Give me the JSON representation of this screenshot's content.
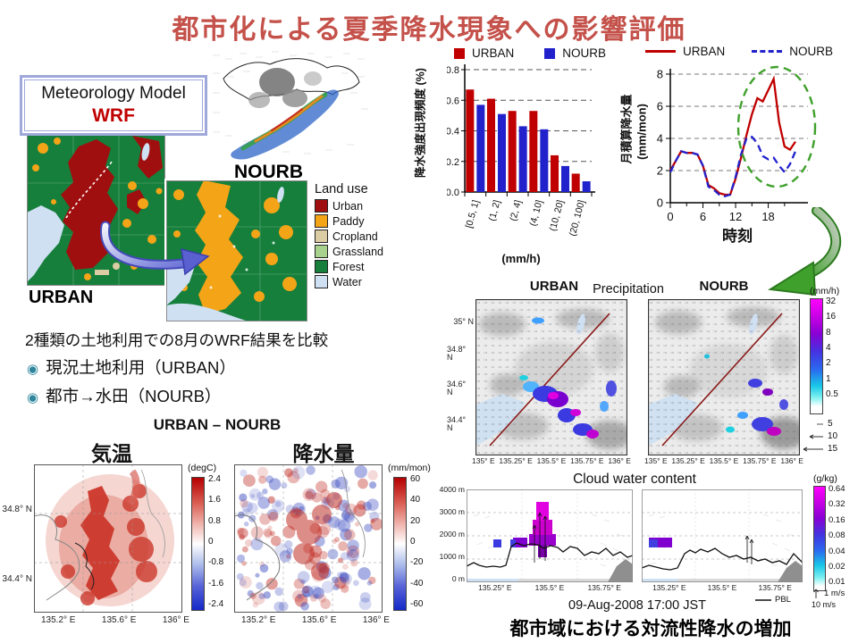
{
  "slide": {
    "title": "都市化による夏季降水現象への影響評価",
    "bottom_caption": "都市域における対流性降水の増加"
  },
  "model_box": {
    "line1": "Meteorology Model",
    "line2": "WRF"
  },
  "landuse": {
    "urban_label": "URBAN",
    "nourb_label": "NOURB",
    "legend_title": "Land use",
    "items": [
      {
        "label": "Urban",
        "color": "#A00F0F"
      },
      {
        "label": "Paddy",
        "color": "#F4A417"
      },
      {
        "label": "Cropland",
        "color": "#DCCCA4"
      },
      {
        "label": "Grassland",
        "color": "#A9D18E"
      },
      {
        "label": "Forest",
        "color": "#157F3B"
      },
      {
        "label": "Water",
        "color": "#CFE0F2"
      }
    ]
  },
  "comparison": {
    "heading": "2種類の土地利用での8月のWRF結果を比較",
    "bullet_glyph": "◉",
    "bullets": [
      "現況土地利用（URBAN）",
      "都市→水田（NOURB）"
    ],
    "diff_heading": "URBAN – NOURB"
  },
  "chart_data": [
    {
      "type": "bar",
      "name": "precipitation-intensity-frequency",
      "categories": [
        "[0.5, 1]",
        "(1, 2]",
        "(2, 4]",
        "(4, 10]",
        "(10, 20]",
        "(20, 100]"
      ],
      "series": [
        {
          "name": "URBAN",
          "color": "#C00000",
          "values": [
            0.67,
            0.61,
            0.53,
            0.53,
            0.24,
            0.12
          ]
        },
        {
          "name": "NOURB",
          "color": "#2222CC",
          "values": [
            0.57,
            0.51,
            0.43,
            0.41,
            0.17,
            0.07
          ]
        }
      ],
      "ylabel": "降水強度出現頻度 (%)",
      "xlabel": "(mm/h)",
      "ylim": [
        0,
        0.8
      ],
      "yticks": [
        "0.0",
        "0.2",
        "0.4",
        "0.6",
        "0.8"
      ],
      "grid": "dashed horizontal"
    },
    {
      "type": "line",
      "name": "diurnal-precipitation",
      "x": [
        0,
        1,
        2,
        3,
        4,
        5,
        6,
        7,
        8,
        9,
        10,
        11,
        12,
        13,
        14,
        15,
        16,
        17,
        18,
        19,
        20,
        21,
        22,
        23
      ],
      "series": [
        {
          "name": "URBAN",
          "color": "#C00000",
          "dash": "solid",
          "values": [
            2.0,
            2.6,
            3.2,
            3.1,
            3.1,
            3.0,
            2.3,
            1.1,
            0.9,
            0.6,
            0.5,
            0.5,
            1.5,
            2.8,
            4.2,
            5.5,
            6.5,
            6.3,
            7.0,
            7.7,
            5.0,
            3.5,
            3.3,
            3.8
          ]
        },
        {
          "name": "NOURB",
          "color": "#2222CC",
          "dash": "dashed",
          "values": [
            1.9,
            2.6,
            3.2,
            3.1,
            3.1,
            3.0,
            2.3,
            1.0,
            0.8,
            0.5,
            0.4,
            0.5,
            1.6,
            3.0,
            4.0,
            4.1,
            3.7,
            2.9,
            2.7,
            2.8,
            2.3,
            1.9,
            2.4,
            3.2
          ]
        }
      ],
      "ylabel": "月積算降水量 (mm/mon)",
      "ylabel_jp": "月積算降水量",
      "ylabel_unit": "(mm/mon)",
      "xlabel": "時刻",
      "ylim": [
        0,
        8
      ],
      "yticks": [
        "0",
        "2",
        "4",
        "6",
        "8"
      ],
      "xticks": [
        "0",
        "6",
        "12",
        "18"
      ],
      "annotation": "green dashed ellipse highlighting afternoon (14-23h) urban precipitation peak"
    },
    {
      "type": "heatmap",
      "name": "temperature-diff-map",
      "title": "気温",
      "colorbar_label": "(degC)",
      "colorbar_ticks": [
        "2.4",
        "1.6",
        "0.8",
        "0",
        "-0.8",
        "-1.6",
        "-2.4"
      ],
      "lat_ticks": [
        "34.8° N",
        "34.4° N"
      ],
      "lon_ticks": [
        "135.2° E",
        "135.6° E",
        "136° E"
      ]
    },
    {
      "type": "heatmap",
      "name": "precipitation-diff-map",
      "title": "降水量",
      "colorbar_label": "(mm/mon)",
      "colorbar_ticks": [
        "60",
        "40",
        "20",
        "0",
        "-20",
        "-40",
        "-60"
      ],
      "lon_ticks": [
        "135.2° E",
        "135.6° E",
        "136° E"
      ]
    },
    {
      "type": "heatmap",
      "name": "precipitation-maps",
      "title": "Precipitation",
      "panel_titles": [
        "URBAN",
        "NOURB"
      ],
      "colorbar_label": "(mm/h)",
      "colorbar_ticks": [
        "32",
        "16",
        "8",
        "4",
        "2",
        "1",
        "0.5"
      ],
      "wind_arrows": [
        "5",
        "10",
        "15"
      ],
      "lat_ticks": [
        "35° N",
        "34.8° N",
        "34.6° N",
        "34.4° N"
      ],
      "lon_ticks": [
        "135° E",
        "135.25° E",
        "135.5° E",
        "135.75° E",
        "136° E"
      ]
    },
    {
      "type": "heatmap",
      "name": "cloud-water-content",
      "title": "Cloud water content",
      "colorbar_label": "(g/kg)",
      "colorbar_ticks": [
        "0.64",
        "0.32",
        "0.16",
        "0.08",
        "0.04",
        "0.02",
        "0.01"
      ],
      "height_ticks": [
        "4000 m",
        "3000 m",
        "2000 m",
        "1000 m",
        "0 m"
      ],
      "lon_ticks": [
        "135.25° E",
        "135.5° E",
        "135.75° E"
      ],
      "timestamp": "09-Aug-2008 17:00 JST",
      "pbl_label": "PBL",
      "wind_scale": [
        "1 m/s",
        "10 m/s"
      ]
    }
  ]
}
